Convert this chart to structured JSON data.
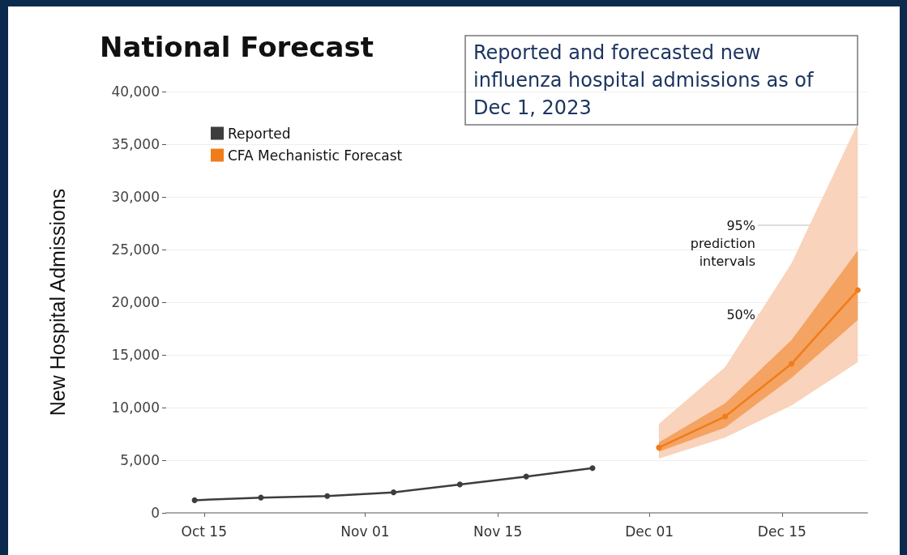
{
  "chart_data": {
    "type": "line",
    "title": "National Forecast",
    "subtitle": "Reported and forecasted new influenza hospital admissions as of Dec 1, 2023",
    "ylabel": "New Hospital Admissions",
    "series": [
      {
        "name": "Reported",
        "color": "#3d3d3d",
        "x": [
          "2023-10-14",
          "2023-10-21",
          "2023-10-28",
          "2023-11-04",
          "2023-11-11",
          "2023-11-18",
          "2023-11-25"
        ],
        "values": [
          1200,
          1450,
          1600,
          1950,
          2700,
          3450,
          4250
        ]
      },
      {
        "name": "CFA Mechanistic Forecast",
        "color": "#f07c1a",
        "x": [
          "2023-12-02",
          "2023-12-09",
          "2023-12-16",
          "2023-12-23"
        ],
        "values": [
          6200,
          9150,
          14150,
          21150
        ],
        "lower": [
          5800,
          8100,
          12800,
          18300
        ],
        "upper": [
          6700,
          10400,
          16400,
          24900
        ]
      },
      {
        "color": "#f9d3bb",
        "x": [
          "2023-12-02",
          "2023-12-09",
          "2023-12-16",
          "2023-12-23"
        ],
        "values": [
          null,
          null,
          null,
          null
        ],
        "lower": [
          5150,
          7150,
          10200,
          14300
        ],
        "upper": [
          8450,
          13850,
          23700,
          37000
        ]
      }
    ],
    "xlim": [
      "2023-10-11",
      "2023-12-24"
    ],
    "xticks": [
      {
        "value": "2023-10-15",
        "label": "Oct 15"
      },
      {
        "value": "2023-11-01",
        "label": "Nov 01"
      },
      {
        "value": "2023-11-15",
        "label": "Nov 15"
      },
      {
        "value": "2023-12-01",
        "label": "Dec 01"
      },
      {
        "value": "2023-12-15",
        "label": "Dec 15"
      }
    ],
    "ylim": [
      0,
      40000
    ],
    "yticks": [
      0,
      {
        "value": 5000,
        "label": "5,000"
      },
      {
        "value": 10000,
        "label": "10,000"
      },
      {
        "value": 15000,
        "label": "15,000"
      },
      {
        "value": 20000,
        "label": "20,000"
      },
      {
        "value": 25000,
        "label": "25,000"
      },
      {
        "value": 30000,
        "label": "30,000"
      },
      {
        "value": 35000,
        "label": "35,000"
      },
      {
        "value": 40000,
        "label": "40,000"
      }
    ],
    "annotations": [
      "95%\nprediction\nintervals",
      "50%"
    ],
    "grid": "y",
    "legend": "top left",
    "marker": "circle",
    "line_style": "solid"
  }
}
